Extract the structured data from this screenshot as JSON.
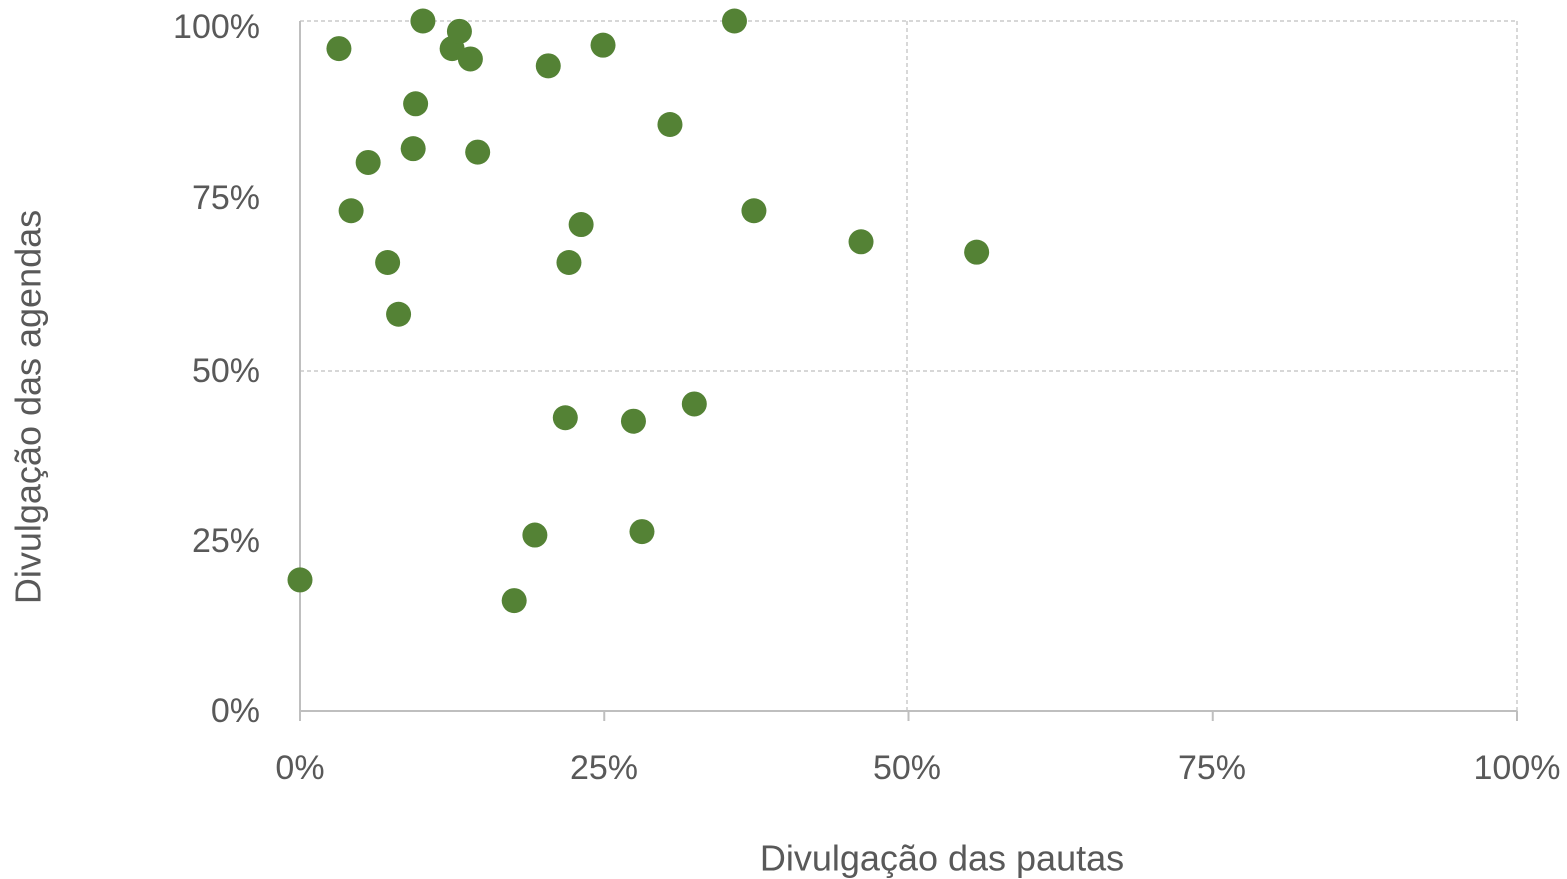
{
  "chart_data": {
    "type": "scatter",
    "xlabel": "Divulgação das pautas",
    "ylabel": "Divulgação das agendas",
    "xlim": [
      0,
      100
    ],
    "ylim": [
      0,
      100
    ],
    "x_ticks": [
      "0%",
      "25%",
      "50%",
      "75%",
      "100%"
    ],
    "y_ticks": [
      "0%",
      "25%",
      "50%",
      "75%",
      "100%"
    ],
    "grid": "dashed major gridlines at 50% and 100%",
    "point_color": "#548235",
    "points": [
      {
        "x": 0.0,
        "y": 19.0
      },
      {
        "x": 3.2,
        "y": 96.0
      },
      {
        "x": 4.2,
        "y": 72.5
      },
      {
        "x": 5.6,
        "y": 79.5
      },
      {
        "x": 7.2,
        "y": 65.0
      },
      {
        "x": 8.1,
        "y": 57.5
      },
      {
        "x": 9.3,
        "y": 81.5
      },
      {
        "x": 9.5,
        "y": 88.0
      },
      {
        "x": 10.1,
        "y": 100.0
      },
      {
        "x": 12.5,
        "y": 96.0
      },
      {
        "x": 13.1,
        "y": 98.5
      },
      {
        "x": 14.0,
        "y": 94.5
      },
      {
        "x": 14.6,
        "y": 81.0
      },
      {
        "x": 17.6,
        "y": 16.0
      },
      {
        "x": 19.3,
        "y": 25.5
      },
      {
        "x": 20.4,
        "y": 93.5
      },
      {
        "x": 21.8,
        "y": 42.5
      },
      {
        "x": 22.1,
        "y": 65.0
      },
      {
        "x": 23.1,
        "y": 70.5
      },
      {
        "x": 24.9,
        "y": 96.5
      },
      {
        "x": 27.4,
        "y": 42.0
      },
      {
        "x": 28.1,
        "y": 26.0
      },
      {
        "x": 30.4,
        "y": 85.0
      },
      {
        "x": 32.4,
        "y": 44.5
      },
      {
        "x": 35.7,
        "y": 100.0
      },
      {
        "x": 37.3,
        "y": 72.5
      },
      {
        "x": 46.1,
        "y": 68.0
      },
      {
        "x": 55.6,
        "y": 66.5
      }
    ]
  }
}
